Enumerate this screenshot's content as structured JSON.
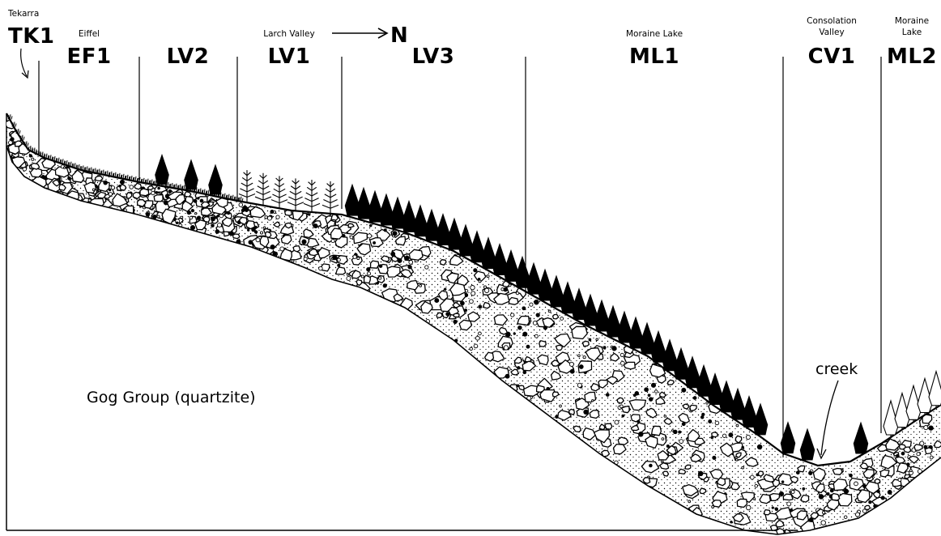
{
  "north_label": "N",
  "rock_label": "Gog Group (quartzite)",
  "creek_label": "creek",
  "sites": [
    {
      "code": "TK1",
      "name": "Tekarra"
    },
    {
      "code": "EF1",
      "name": "Eiffel"
    },
    {
      "code": "LV2",
      "name": ""
    },
    {
      "code": "LV1",
      "name": "Larch Valley"
    },
    {
      "code": "LV3",
      "name": ""
    },
    {
      "code": "ML1",
      "name": "Moraine Lake"
    },
    {
      "code": "CV1",
      "name_line1": "Consolation",
      "name_line2": "Valley"
    },
    {
      "code": "ML2",
      "name_line1": "Moraine",
      "name_line2": "Lake"
    }
  ]
}
